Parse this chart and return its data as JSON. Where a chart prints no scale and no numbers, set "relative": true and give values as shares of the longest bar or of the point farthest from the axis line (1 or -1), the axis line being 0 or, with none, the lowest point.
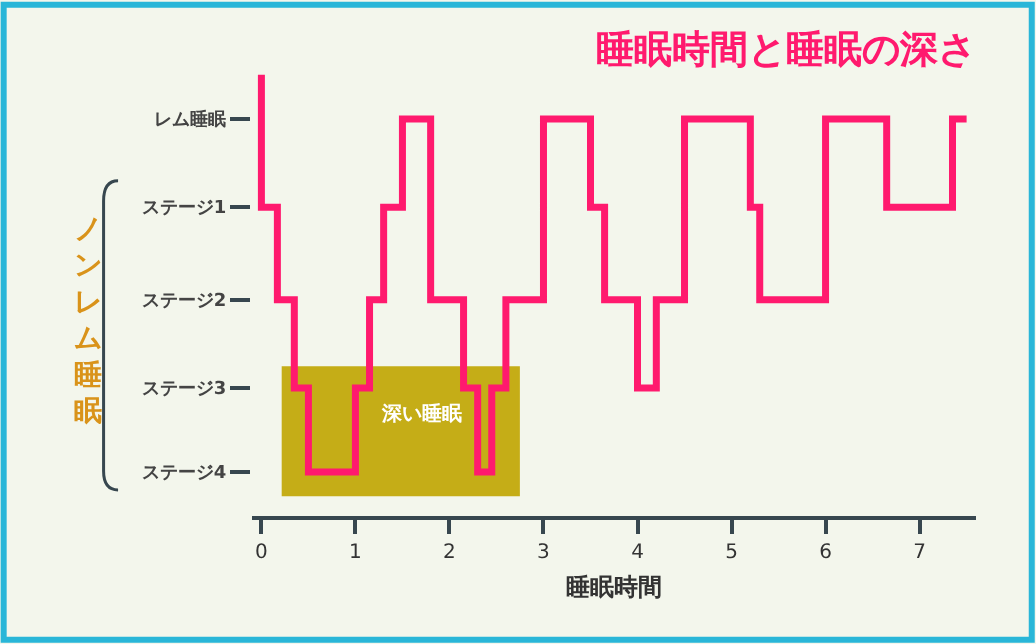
{
  "chart_data": {
    "type": "step",
    "title": "睡眠時間と睡眠の深さ",
    "xlabel": "睡眠時間",
    "x": [
      0,
      0,
      0.17,
      0.35,
      0.5,
      1.0,
      1.15,
      1.3,
      1.5,
      1.8,
      2.15,
      2.3,
      2.45,
      2.6,
      3.0,
      3.5,
      3.65,
      4.0,
      4.2,
      4.5,
      5.2,
      5.3,
      6.0,
      6.65,
      7.35,
      7.5
    ],
    "y_categories": [
      null,
      "レム睡眠",
      "ステージ1",
      "ステージ2",
      "ステージ3",
      "ステージ4"
    ],
    "relative": true,
    "series": [
      {
        "color": "#ff1a6e",
        "values": [
          1,
          0.7,
          0.49,
          0.29,
          0.1,
          0.29,
          0.49,
          0.7,
          0.9,
          0.49,
          0.29,
          0.1,
          0.29,
          0.49,
          0.9,
          0.7,
          0.49,
          0.29,
          0.49,
          0.9,
          0.7,
          0.49,
          0.9,
          0.7,
          0.9,
          0.9
        ]
      }
    ],
    "xlim": [
      -0.1,
      7.6
    ],
    "xticks": [
      0,
      1,
      2,
      3,
      4,
      5,
      6,
      7
    ],
    "annotations": [
      "深い睡眠",
      "ノンレム睡眠"
    ],
    "grid": false,
    "marker": "none",
    "line_style": "solid"
  }
}
